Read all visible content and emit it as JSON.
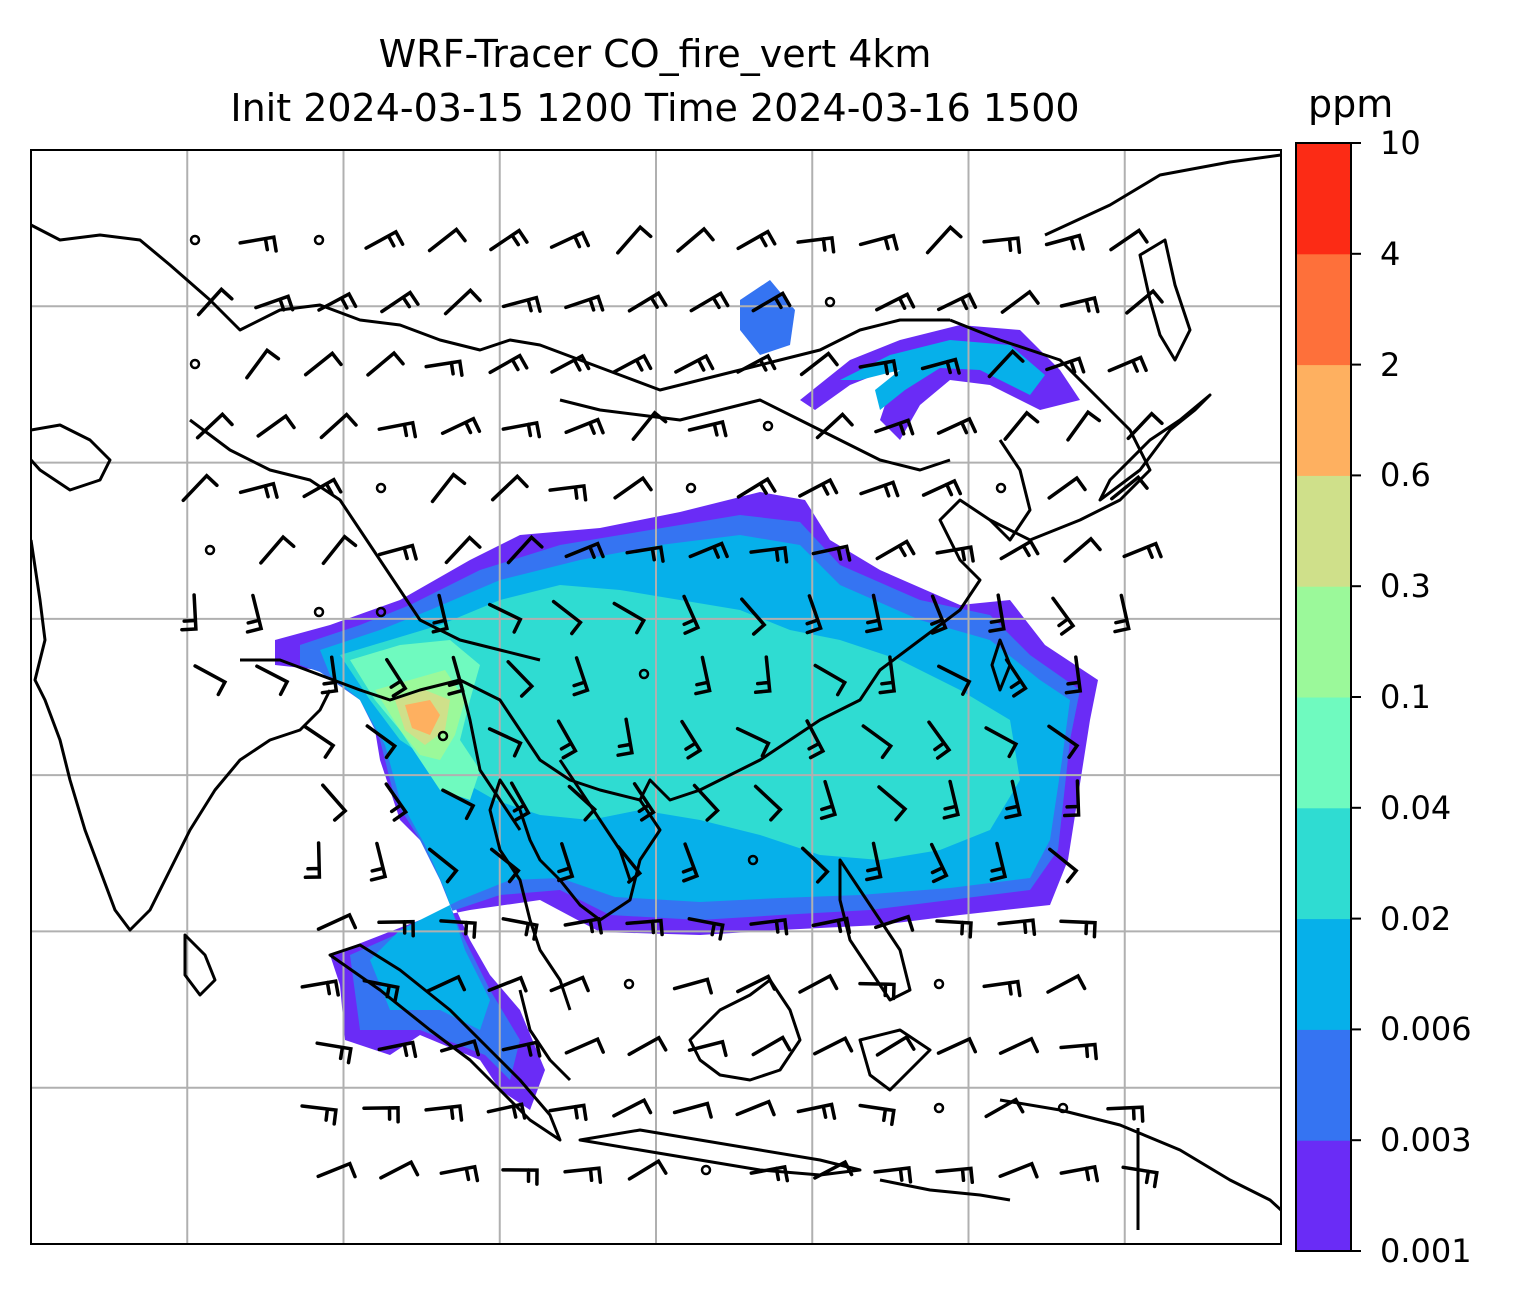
{
  "title": {
    "line1": "WRF-Tracer CO_fire_vert 4km",
    "line2": "Init 2024-03-15 1200 Time 2024-03-16 1500"
  },
  "colorbar": {
    "unit": "ppm",
    "ticks": [
      "0.001",
      "0.003",
      "0.006",
      "0.02",
      "0.04",
      "0.1",
      "0.3",
      "0.6",
      "2",
      "4",
      "10"
    ],
    "colors": [
      "#6a2cf6",
      "#3574f2",
      "#06b0ea",
      "#2fdcd2",
      "#6ffabf",
      "#9bf99a",
      "#cfe08a",
      "#feb060",
      "#fe703a",
      "#fc2b15"
    ]
  },
  "map": {
    "gridlines": true,
    "grid_columns": 8,
    "grid_rows": 7,
    "land_outline_color": "#000000",
    "gridline_color": "#b0b0b0"
  }
}
